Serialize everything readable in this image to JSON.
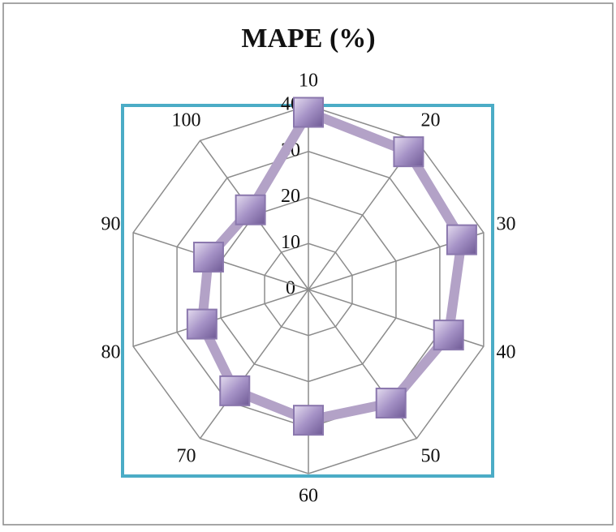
{
  "chart_data": {
    "type": "radar",
    "title": "MAPE (%)",
    "categories": [
      "10",
      "20",
      "30",
      "40",
      "50",
      "60",
      "70",
      "80",
      "90",
      "100"
    ],
    "series": [
      {
        "color": "#b3a2c7",
        "marker_color": "#8a77ad",
        "values": [
          38.5,
          37,
          35,
          32,
          30.5,
          28.4,
          27.2,
          24.3,
          22.8,
          21.4
        ]
      }
    ],
    "rlim": [
      0,
      40
    ],
    "rticks": [
      0,
      10,
      20,
      30,
      40
    ],
    "grid": true
  }
}
